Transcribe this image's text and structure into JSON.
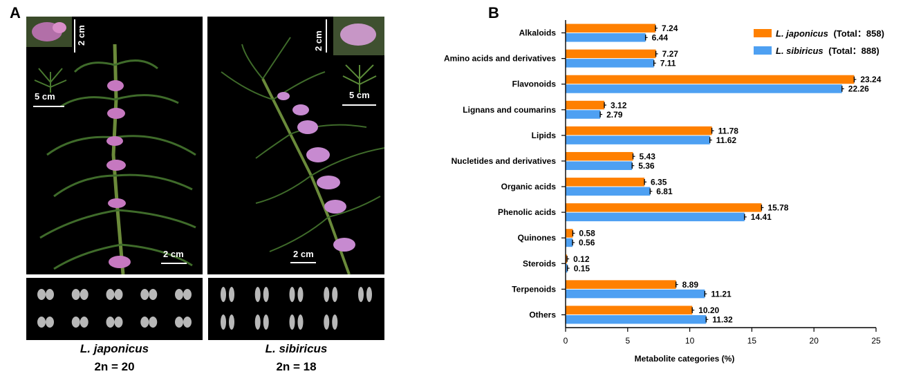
{
  "panels": {
    "a_label": "A",
    "b_label": "B"
  },
  "panel_a": {
    "left": {
      "species": "L. japonicus",
      "chromosome": "2n = 20",
      "scale_inset": "2 cm",
      "scale_leaf": "5 cm",
      "scale_main": "2 cm",
      "karyotype_pairs": 10
    },
    "right": {
      "species": "L. sibiricus",
      "chromosome": "2n = 18",
      "scale_inset": "2 cm",
      "scale_leaf": "5 cm",
      "scale_main": "2 cm",
      "karyotype_pairs": 9
    }
  },
  "legend": {
    "series1_italic": "L. japonicus",
    "series1_total": "(Total：858)",
    "series2_italic": "L. sibiricus",
    "series2_total": "(Total：888)"
  },
  "chart_data": {
    "type": "bar",
    "orientation": "horizontal",
    "categories": [
      "Alkaloids",
      "Amino acids and derivatives",
      "Flavonoids",
      "Lignans and coumarins",
      "Lipids",
      "Nucletides and derivatives",
      "Organic acids",
      "Phenolic acids",
      "Quinones",
      "Steroids",
      "Terpenoids",
      "Others"
    ],
    "series": [
      {
        "name": "L. japonicus",
        "color": "#FF8000",
        "values": [
          7.24,
          7.27,
          23.24,
          3.12,
          11.78,
          5.43,
          6.35,
          15.78,
          0.58,
          0.12,
          8.89,
          10.2
        ],
        "labels": [
          "7.24",
          "7.27",
          "23.24",
          "3.12",
          "11.78",
          "5.43",
          "6.35",
          "15.78",
          "0.58",
          "0.12",
          "8.89",
          "10.20"
        ]
      },
      {
        "name": "L. sibiricus",
        "color": "#4EA0F2",
        "values": [
          6.44,
          7.11,
          22.26,
          2.79,
          11.62,
          5.36,
          6.81,
          14.41,
          0.56,
          0.15,
          11.21,
          11.32
        ],
        "labels": [
          "6.44",
          "7.11",
          "22.26",
          "2.79",
          "11.62",
          "5.36",
          "6.81",
          "14.41",
          "0.56",
          "0.15",
          "11.21",
          "11.32"
        ]
      }
    ],
    "xlabel": "Metabolite categories  (%)",
    "xlim": [
      0,
      25
    ],
    "xticks": [
      0,
      5,
      10,
      15,
      20,
      25
    ],
    "xtick_labels": [
      "0",
      "5",
      "10",
      "15",
      "20",
      "25"
    ],
    "legend_position": "top-right",
    "grid": false,
    "error_bars": true
  }
}
